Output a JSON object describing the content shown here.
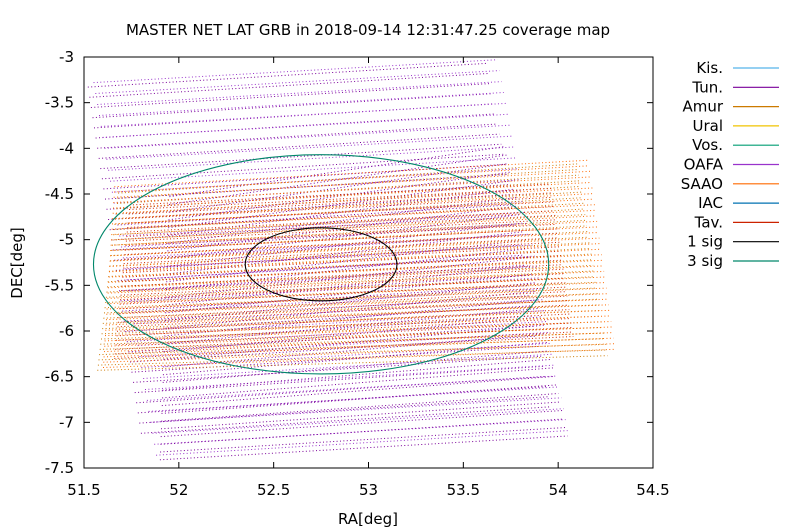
{
  "chart_data": {
    "type": "line",
    "title": "MASTER NET LAT GRB in 2018-09-14 12:31:47.25 coverage map",
    "xlabel": "RA[deg]",
    "ylabel": "DEC[deg]",
    "xlim": [
      51.5,
      54.5
    ],
    "ylim": [
      -7.5,
      -3
    ],
    "x_ticks": [
      "51.5",
      "52",
      "52.5",
      "53",
      "53.5",
      "54",
      "54.5"
    ],
    "y_ticks": [
      "-3",
      "-3.5",
      "-4",
      "-4.5",
      "-5",
      "-5.5",
      "-6",
      "-6.5",
      "-7",
      "-7.5"
    ],
    "grid": false,
    "legend_position": "outside-right",
    "series": [
      {
        "name": "Kis.",
        "color": "#56b4e9",
        "style": "dotted"
      },
      {
        "name": "Tun.",
        "color": "#7a0099",
        "style": "dotted"
      },
      {
        "name": "Amur",
        "color": "#cc7a00",
        "style": "dotted"
      },
      {
        "name": "Ural",
        "color": "#f0c400",
        "style": "dotted"
      },
      {
        "name": "Vos.",
        "color": "#009e73",
        "style": "dotted"
      },
      {
        "name": "OAFA",
        "color": "#9933cc",
        "style": "dotted"
      },
      {
        "name": "SAAO",
        "color": "#ff6a00",
        "style": "dotted"
      },
      {
        "name": "IAC",
        "color": "#0072b2",
        "style": "dotted"
      },
      {
        "name": "Tav.",
        "color": "#cc2200",
        "style": "dotted"
      },
      {
        "name": "1 sig",
        "color": "#000000",
        "style": "solid",
        "ellipse": {
          "center": [
            52.75,
            -5.27
          ],
          "ra_radius": 0.4,
          "dec_radius": 0.4
        }
      },
      {
        "name": "3 sig",
        "color": "#00876a",
        "style": "solid",
        "ellipse": {
          "center": [
            52.75,
            -5.27
          ],
          "ra_radius": 1.2,
          "dec_radius": 1.2
        }
      }
    ],
    "coverage_fields": [
      {
        "station": "Tun.",
        "corners": [
          [
            51.52,
            -3.33
          ],
          [
            53.62,
            -3.07
          ],
          [
            53.96,
            -6.83
          ],
          [
            51.8,
            -7.12
          ]
        ]
      },
      {
        "station": "OAFA",
        "corners": [
          [
            51.55,
            -3.28
          ],
          [
            53.68,
            -3.03
          ],
          [
            54.05,
            -7.09
          ],
          [
            51.88,
            -7.36
          ]
        ]
      },
      {
        "station": "Tun.",
        "corners": [
          [
            51.95,
            -4.53
          ],
          [
            53.72,
            -3.98
          ],
          [
            54.05,
            -7.15
          ],
          [
            51.9,
            -7.41
          ]
        ]
      },
      {
        "station": "Amur",
        "corners": [
          [
            51.68,
            -4.49
          ],
          [
            54.1,
            -4.17
          ],
          [
            54.26,
            -6.27
          ],
          [
            51.57,
            -6.43
          ]
        ]
      },
      {
        "station": "SAAO",
        "corners": [
          [
            51.66,
            -4.42
          ],
          [
            54.16,
            -4.13
          ],
          [
            54.3,
            -6.2
          ],
          [
            51.6,
            -6.4
          ]
        ]
      },
      {
        "station": "Tav.",
        "corners": [
          [
            51.74,
            -4.62
          ],
          [
            53.96,
            -4.39
          ],
          [
            54.08,
            -6.06
          ],
          [
            51.66,
            -6.3
          ]
        ]
      }
    ]
  }
}
